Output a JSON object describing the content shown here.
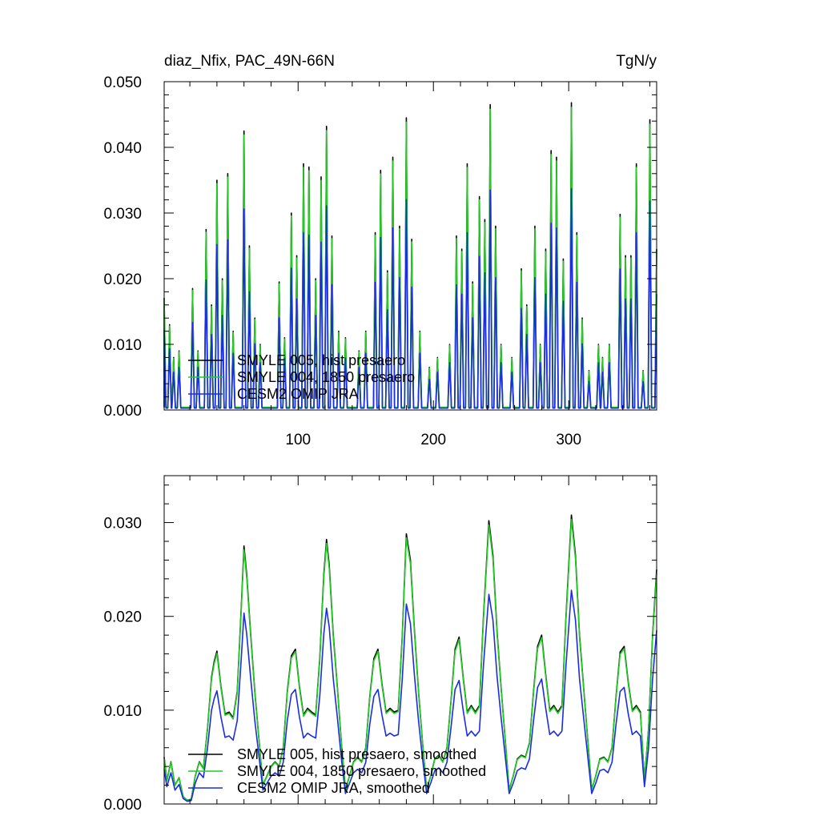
{
  "colors": {
    "black": "#000000",
    "green": "#22cc22",
    "blue": "#1a2de0"
  },
  "chart_data": [
    {
      "type": "line",
      "title": "diaz_Nfix, PAC_49N-66N",
      "units": "TgN/y",
      "xlim": [
        1,
        365
      ],
      "ylim": [
        0,
        0.05
      ],
      "yticks": [
        "0.000",
        "0.010",
        "0.020",
        "0.030",
        "0.040",
        "0.050"
      ],
      "xticks": [
        "100",
        "200",
        "300"
      ],
      "legend_position": "lower-left",
      "peaks": [
        [
          1,
          0.017
        ],
        [
          5,
          0.013
        ],
        [
          8,
          0.008
        ],
        [
          12,
          0.009
        ],
        [
          22,
          0.0185
        ],
        [
          26,
          0.009
        ],
        [
          32,
          0.0275
        ],
        [
          36,
          0.016
        ],
        [
          40,
          0.035
        ],
        [
          44,
          0.02
        ],
        [
          48,
          0.036
        ],
        [
          52,
          0.012
        ],
        [
          60,
          0.0425
        ],
        [
          64,
          0.025
        ],
        [
          68,
          0.014
        ],
        [
          72,
          0.01
        ],
        [
          86,
          0.0195
        ],
        [
          90,
          0.011
        ],
        [
          95,
          0.03
        ],
        [
          99,
          0.0235
        ],
        [
          104,
          0.0375
        ],
        [
          108,
          0.037
        ],
        [
          113,
          0.02
        ],
        [
          117,
          0.0355
        ],
        [
          121,
          0.0432
        ],
        [
          125,
          0.0265
        ],
        [
          130,
          0.012
        ],
        [
          135,
          0.011
        ],
        [
          145,
          0.009
        ],
        [
          150,
          0.012
        ],
        [
          157,
          0.027
        ],
        [
          161,
          0.0365
        ],
        [
          166,
          0.0212
        ],
        [
          170,
          0.0385
        ],
        [
          175,
          0.028
        ],
        [
          180,
          0.0445
        ],
        [
          184,
          0.026
        ],
        [
          190,
          0.012
        ],
        [
          197,
          0.0065
        ],
        [
          203,
          0.008
        ],
        [
          212,
          0.01
        ],
        [
          217,
          0.0265
        ],
        [
          221,
          0.0245
        ],
        [
          225,
          0.0375
        ],
        [
          229,
          0.0195
        ],
        [
          234,
          0.0325
        ],
        [
          238,
          0.029
        ],
        [
          242,
          0.0465
        ],
        [
          246,
          0.028
        ],
        [
          250,
          0.01
        ],
        [
          258,
          0.008
        ],
        [
          265,
          0.0215
        ],
        [
          269,
          0.016
        ],
        [
          275,
          0.028
        ],
        [
          279,
          0.01
        ],
        [
          283,
          0.0245
        ],
        [
          287,
          0.0395
        ],
        [
          291,
          0.0385
        ],
        [
          296,
          0.023
        ],
        [
          302,
          0.0468
        ],
        [
          306,
          0.027
        ],
        [
          310,
          0.014
        ],
        [
          315,
          0.006
        ],
        [
          322,
          0.01
        ],
        [
          325,
          0.008
        ],
        [
          330,
          0.01
        ],
        [
          338,
          0.0298
        ],
        [
          342,
          0.0235
        ],
        [
          346,
          0.0235
        ],
        [
          350,
          0.0375
        ],
        [
          355,
          0.006
        ],
        [
          360,
          0.0442
        ],
        [
          365,
          0.0245
        ]
      ],
      "series": [
        {
          "name": "SMYLE 005, hist presaero",
          "color": "#000000",
          "scale": 1.0
        },
        {
          "name": "SMYLE 004, 1850 presaero",
          "color": "#22cc22",
          "scale": 0.985
        },
        {
          "name": "CESM2 OMIP JRA",
          "color": "#1a2de0",
          "scale": 0.72
        }
      ]
    },
    {
      "type": "line",
      "xlim": [
        1,
        365
      ],
      "ylim": [
        0,
        0.035
      ],
      "yticks": [
        "0.000",
        "0.010",
        "0.020",
        "0.030"
      ],
      "legend_position": "lower-left",
      "points": [
        [
          1,
          0.005
        ],
        [
          3,
          0.0025
        ],
        [
          6,
          0.0045
        ],
        [
          9,
          0.002
        ],
        [
          12,
          0.0028
        ],
        [
          15,
          0.0008
        ],
        [
          18,
          0.0004
        ],
        [
          21,
          0.0005
        ],
        [
          24,
          0.003
        ],
        [
          27,
          0.0045
        ],
        [
          30,
          0.0038
        ],
        [
          33,
          0.008
        ],
        [
          36,
          0.0135
        ],
        [
          38,
          0.0152
        ],
        [
          40,
          0.0163
        ],
        [
          43,
          0.0125
        ],
        [
          46,
          0.0096
        ],
        [
          49,
          0.0098
        ],
        [
          52,
          0.0092
        ],
        [
          55,
          0.012
        ],
        [
          58,
          0.021
        ],
        [
          60,
          0.0275
        ],
        [
          62,
          0.0245
        ],
        [
          65,
          0.018
        ],
        [
          68,
          0.012
        ],
        [
          71,
          0.007
        ],
        [
          74,
          0.002
        ],
        [
          77,
          0.003
        ],
        [
          80,
          0.004
        ],
        [
          83,
          0.0045
        ],
        [
          86,
          0.004
        ],
        [
          89,
          0.006
        ],
        [
          92,
          0.012
        ],
        [
          95,
          0.0158
        ],
        [
          98,
          0.0165
        ],
        [
          101,
          0.0125
        ],
        [
          104,
          0.0095
        ],
        [
          107,
          0.0102
        ],
        [
          110,
          0.0098
        ],
        [
          113,
          0.0095
        ],
        [
          116,
          0.0155
        ],
        [
          119,
          0.0245
        ],
        [
          121,
          0.0282
        ],
        [
          123,
          0.0255
        ],
        [
          126,
          0.018
        ],
        [
          129,
          0.0125
        ],
        [
          132,
          0.0065
        ],
        [
          135,
          0.0015
        ],
        [
          138,
          0.003
        ],
        [
          141,
          0.0045
        ],
        [
          144,
          0.005
        ],
        [
          147,
          0.0045
        ],
        [
          150,
          0.006
        ],
        [
          153,
          0.0115
        ],
        [
          156,
          0.0155
        ],
        [
          159,
          0.0165
        ],
        [
          162,
          0.0128
        ],
        [
          165,
          0.0098
        ],
        [
          168,
          0.0102
        ],
        [
          171,
          0.0098
        ],
        [
          174,
          0.01
        ],
        [
          177,
          0.018
        ],
        [
          180,
          0.0288
        ],
        [
          183,
          0.026
        ],
        [
          186,
          0.0185
        ],
        [
          189,
          0.012
        ],
        [
          192,
          0.0065
        ],
        [
          195,
          0.0015
        ],
        [
          198,
          0.003
        ],
        [
          201,
          0.0048
        ],
        [
          204,
          0.0052
        ],
        [
          207,
          0.0045
        ],
        [
          210,
          0.006
        ],
        [
          213,
          0.011
        ],
        [
          216,
          0.0165
        ],
        [
          219,
          0.0178
        ],
        [
          222,
          0.0135
        ],
        [
          225,
          0.0098
        ],
        [
          228,
          0.0105
        ],
        [
          231,
          0.0098
        ],
        [
          234,
          0.0105
        ],
        [
          237,
          0.02
        ],
        [
          241,
          0.0302
        ],
        [
          244,
          0.0265
        ],
        [
          247,
          0.0185
        ],
        [
          250,
          0.0125
        ],
        [
          253,
          0.007
        ],
        [
          256,
          0.0015
        ],
        [
          259,
          0.003
        ],
        [
          262,
          0.0048
        ],
        [
          265,
          0.0052
        ],
        [
          268,
          0.005
        ],
        [
          271,
          0.0065
        ],
        [
          274,
          0.012
        ],
        [
          277,
          0.0168
        ],
        [
          280,
          0.018
        ],
        [
          283,
          0.0138
        ],
        [
          286,
          0.01
        ],
        [
          289,
          0.0105
        ],
        [
          292,
          0.0098
        ],
        [
          295,
          0.0105
        ],
        [
          298,
          0.02
        ],
        [
          302,
          0.0308
        ],
        [
          305,
          0.0265
        ],
        [
          308,
          0.018
        ],
        [
          311,
          0.0125
        ],
        [
          314,
          0.007
        ],
        [
          317,
          0.0015
        ],
        [
          320,
          0.003
        ],
        [
          323,
          0.0048
        ],
        [
          326,
          0.005
        ],
        [
          329,
          0.0045
        ],
        [
          332,
          0.006
        ],
        [
          335,
          0.0115
        ],
        [
          338,
          0.0162
        ],
        [
          341,
          0.0168
        ],
        [
          344,
          0.013
        ],
        [
          347,
          0.01
        ],
        [
          350,
          0.0105
        ],
        [
          353,
          0.0098
        ],
        [
          356,
          0.0025
        ],
        [
          359,
          0.008
        ],
        [
          362,
          0.018
        ],
        [
          365,
          0.025
        ]
      ],
      "series": [
        {
          "name": "SMYLE 005, hist presaero, smoothed",
          "color": "#000000",
          "scale": 1.0
        },
        {
          "name": "SMYLE 004, 1850 presaero, smoothed",
          "color": "#22cc22",
          "scale": 0.985
        },
        {
          "name": "CESM2 OMIP JRA, smoothed",
          "color": "#1a2de0",
          "scale": 0.74
        }
      ]
    }
  ]
}
